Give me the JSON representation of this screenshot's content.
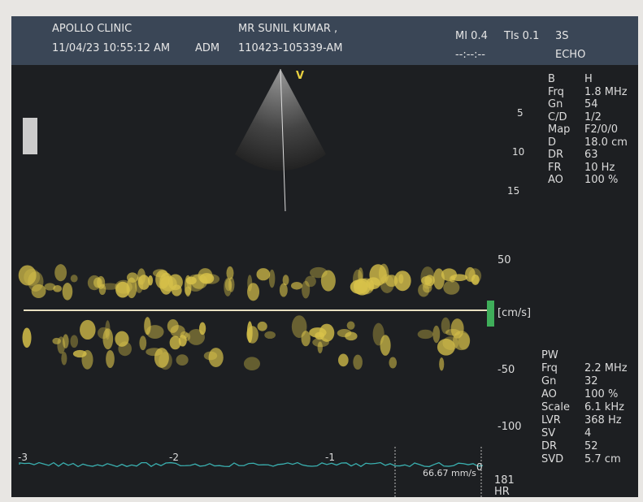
{
  "header": {
    "clinic": "APOLLO CLINIC",
    "datetime": "11/04/23 10:55:12 AM",
    "operator": "ADM",
    "patient": "MR SUNIL KUMAR ,",
    "study_id": "110423-105339-AM",
    "mi": "MI 0.4",
    "tis": "TIs 0.1",
    "probe": "3S",
    "clock": "--:--:--",
    "preset": "ECHO"
  },
  "bmode": {
    "marker": "V",
    "depth_scale": [
      "5",
      "10",
      "15"
    ],
    "params": [
      [
        "B",
        "H"
      ],
      [
        "Frq",
        "1.8 MHz"
      ],
      [
        "Gn",
        "54"
      ],
      [
        "C/D",
        "1/2"
      ],
      [
        "Map",
        "F2/0/0"
      ],
      [
        "D",
        "18.0 cm"
      ],
      [
        "DR",
        "63"
      ],
      [
        "FR",
        "10 Hz"
      ],
      [
        "AO",
        "100 %"
      ]
    ]
  },
  "doppler": {
    "scale": [
      "50",
      "[cm/s]",
      "-50",
      "-100"
    ],
    "mode": "PW",
    "params": [
      [
        "Frq",
        "2.2 MHz"
      ],
      [
        "Gn",
        "32"
      ],
      [
        "AO",
        "100 %"
      ],
      [
        "Scale",
        "6.1 kHz"
      ],
      [
        "LVR",
        "368 Hz"
      ],
      [
        "SV",
        "4"
      ],
      [
        "DR",
        "52"
      ],
      [
        "SVD",
        "5.7 cm"
      ]
    ]
  },
  "timeline": {
    "ticks": [
      "-3",
      "-2",
      "-1",
      "0"
    ],
    "sweep": "66.67 mm/s",
    "heart_rate": "181",
    "heart_rate_label": "HR"
  }
}
